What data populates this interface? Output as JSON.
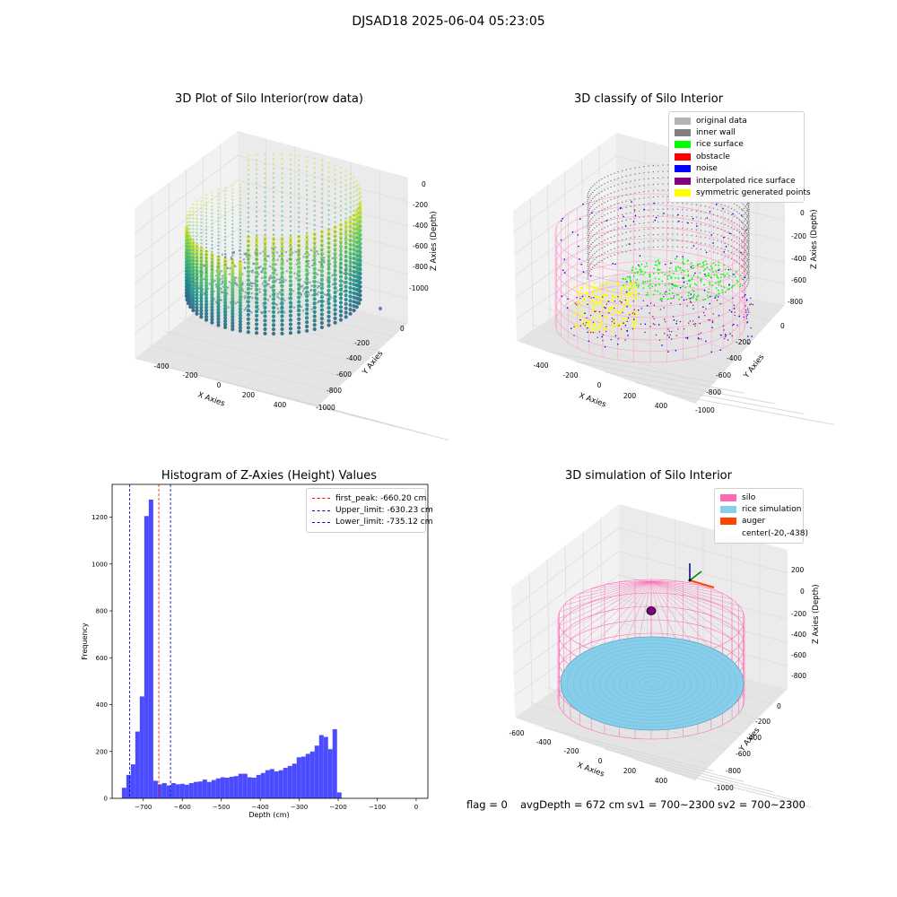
{
  "figure_title": "DJSAD18 2025-06-04 05:23:05",
  "status": {
    "flag": "flag = 0",
    "avg_depth": "avgDepth = 672 cm",
    "sv1": "sv1 = 700~2300",
    "sv2": "sv2 = 700~2300"
  },
  "chart_data": [
    {
      "type": "scatter",
      "title": "3D Plot of Silo Interior(row data)",
      "xlabel": "X Axies",
      "ylabel": "Y Axies",
      "zlabel": "Z Axies (Depth)",
      "x_ticks": [
        "-400",
        "-200",
        "0",
        "200",
        "400"
      ],
      "y_ticks": [
        "0",
        "-200",
        "-400",
        "-600",
        "-800",
        "-1000"
      ],
      "z_ticks": [
        "0",
        "-200",
        "-400",
        "-600",
        "-800",
        "-1000"
      ],
      "colormap": "viridis"
    },
    {
      "type": "scatter",
      "title": "3D classify of Silo Interior",
      "xlabel": "X Axies",
      "ylabel": "Y Axies",
      "zlabel": "Z Axies (Depth)",
      "x_ticks": [
        "-400",
        "-200",
        "0",
        "200",
        "400"
      ],
      "y_ticks": [
        "0",
        "-200",
        "-400",
        "-600",
        "-800",
        "-1000"
      ],
      "z_ticks": [
        "0",
        "-200",
        "-400",
        "-600",
        "-800"
      ],
      "legend": [
        {
          "label": "original data",
          "color": "#b4b4b4"
        },
        {
          "label": "inner wall",
          "color": "#808080"
        },
        {
          "label": "rice surface",
          "color": "#00ff00"
        },
        {
          "label": "obstacle",
          "color": "#ff0000"
        },
        {
          "label": "noise",
          "color": "#0000ff"
        },
        {
          "label": "interpolated rice surface",
          "color": "#800080"
        },
        {
          "label": "symmetric generated points",
          "color": "#ffff00"
        }
      ]
    },
    {
      "type": "bar",
      "title": "Histogram of Z-Axies (Height) Values",
      "xlabel": "Depth (cm)",
      "ylabel": "Frequency",
      "xlim": [
        -780,
        30
      ],
      "ylim": [
        0,
        1340
      ],
      "x_ticks": [
        -700,
        -600,
        -500,
        -400,
        -300,
        -200,
        -100,
        0
      ],
      "y_ticks": [
        0,
        200,
        400,
        600,
        800,
        1000,
        1200
      ],
      "bin_start": -755,
      "bin_width": 11.5,
      "values": [
        45,
        100,
        145,
        285,
        435,
        1205,
        1275,
        75,
        60,
        65,
        55,
        65,
        60,
        62,
        58,
        65,
        70,
        72,
        80,
        70,
        78,
        85,
        90,
        88,
        92,
        95,
        105,
        105,
        90,
        88,
        100,
        108,
        120,
        125,
        115,
        120,
        130,
        138,
        148,
        175,
        178,
        190,
        200,
        225,
        270,
        262,
        210,
        295,
        25
      ],
      "bar_color": "#4b4bff",
      "lines": [
        {
          "label": "first_peak: -660.20 cm",
          "x": -660.2,
          "color": "#ff0000"
        },
        {
          "label": "Upper_limit: -630.23 cm",
          "x": -630.23,
          "color": "#0000cc"
        },
        {
          "label": "Lower_limit: -735.12 cm",
          "x": -735.12,
          "color": "#0000cc"
        }
      ]
    },
    {
      "type": "scatter",
      "title": "3D simulation of Silo Interior",
      "xlabel": "X Axies",
      "ylabel": "Y Axies",
      "zlabel": "Z Axies (Depth)",
      "x_ticks": [
        "-600",
        "-400",
        "-200",
        "0",
        "200",
        "400"
      ],
      "y_ticks": [
        "0",
        "-200",
        "-400",
        "-600",
        "-800",
        "-1000"
      ],
      "z_ticks": [
        "200",
        "0",
        "-200",
        "-400",
        "-600",
        "-800"
      ],
      "legend": [
        {
          "label": "silo",
          "color": "#ff69b4"
        },
        {
          "label": "rice simulation",
          "color": "#87ceeb"
        },
        {
          "label": "auger",
          "color": "#ff4500"
        },
        {
          "label": "center(-20,-438)",
          "color": ""
        }
      ]
    }
  ]
}
